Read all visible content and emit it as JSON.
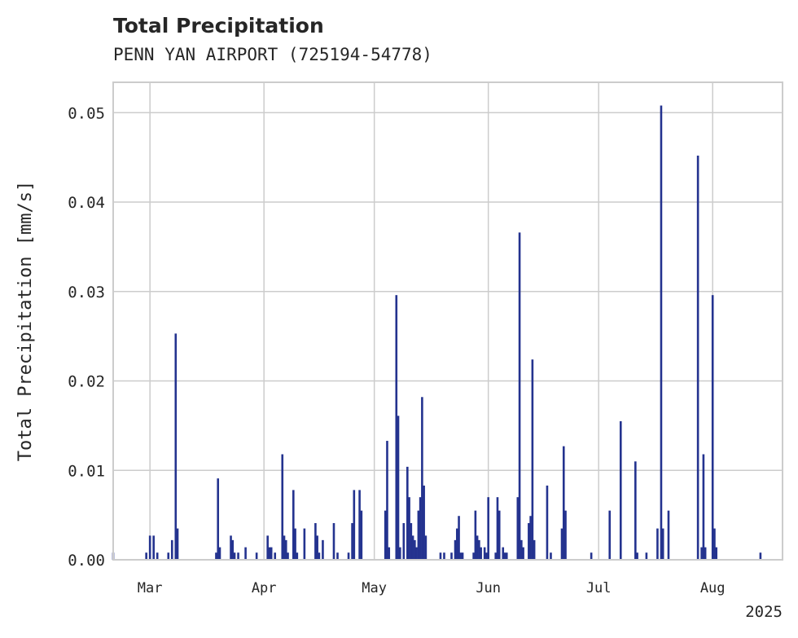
{
  "chart_data": {
    "type": "bar",
    "title": "Total Precipitation",
    "subtitle": "PENN YAN AIRPORT (725194-54778)",
    "xlabel": "",
    "ylabel": "Total Precipitation [mm/s]",
    "year_label": "2025",
    "xlim": [
      "2025-02-19",
      "2025-08-20"
    ],
    "ylim": [
      0,
      0.0534
    ],
    "grid": true,
    "y_ticks": [
      {
        "value": 0.0,
        "label": "0.00"
      },
      {
        "value": 0.01,
        "label": "0.01"
      },
      {
        "value": 0.02,
        "label": "0.02"
      },
      {
        "value": 0.03,
        "label": "0.03"
      },
      {
        "value": 0.04,
        "label": "0.04"
      },
      {
        "value": 0.05,
        "label": "0.05"
      }
    ],
    "x_ticks": [
      {
        "date": "2025-03-01",
        "label": "Mar"
      },
      {
        "date": "2025-04-01",
        "label": "Apr"
      },
      {
        "date": "2025-05-01",
        "label": "May"
      },
      {
        "date": "2025-06-01",
        "label": "Jun"
      },
      {
        "date": "2025-07-01",
        "label": "Jul"
      },
      {
        "date": "2025-08-01",
        "label": "Aug"
      }
    ],
    "color": "#24338f",
    "points": [
      [
        "2025-02-19",
        0.0008
      ],
      [
        "2025-02-28",
        0.0008
      ],
      [
        "2025-03-01",
        0.0027
      ],
      [
        "2025-03-02",
        0.0027
      ],
      [
        "2025-03-03",
        0.0008
      ],
      [
        "2025-03-06",
        0.0008
      ],
      [
        "2025-03-07",
        0.0022
      ],
      [
        "2025-03-08",
        0.0253
      ],
      [
        "2025-03-08T12:00",
        0.0035
      ],
      [
        "2025-03-19",
        0.0008
      ],
      [
        "2025-03-19T12:00",
        0.0091
      ],
      [
        "2025-03-20",
        0.0014
      ],
      [
        "2025-03-23",
        0.0027
      ],
      [
        "2025-03-23T12:00",
        0.0022
      ],
      [
        "2025-03-24",
        0.0008
      ],
      [
        "2025-03-25",
        0.0008
      ],
      [
        "2025-03-27",
        0.0014
      ],
      [
        "2025-03-30",
        0.0008
      ],
      [
        "2025-04-02",
        0.0027
      ],
      [
        "2025-04-02T12:00",
        0.0014
      ],
      [
        "2025-04-03",
        0.0014
      ],
      [
        "2025-04-04",
        0.0008
      ],
      [
        "2025-04-06",
        0.0118
      ],
      [
        "2025-04-06T12:00",
        0.0027
      ],
      [
        "2025-04-07",
        0.0022
      ],
      [
        "2025-04-07T12:00",
        0.0008
      ],
      [
        "2025-04-09",
        0.0078
      ],
      [
        "2025-04-09T12:00",
        0.0035
      ],
      [
        "2025-04-10",
        0.0008
      ],
      [
        "2025-04-12",
        0.0035
      ],
      [
        "2025-04-15",
        0.0041
      ],
      [
        "2025-04-15T12:00",
        0.0027
      ],
      [
        "2025-04-16",
        0.0008
      ],
      [
        "2025-04-17",
        0.0022
      ],
      [
        "2025-04-20",
        0.0041
      ],
      [
        "2025-04-21",
        0.0008
      ],
      [
        "2025-04-24",
        0.0008
      ],
      [
        "2025-04-25",
        0.0041
      ],
      [
        "2025-04-25T12:00",
        0.0078
      ],
      [
        "2025-04-27",
        0.0078
      ],
      [
        "2025-04-27T12:00",
        0.0055
      ],
      [
        "2025-05-04",
        0.0055
      ],
      [
        "2025-05-04T12:00",
        0.0133
      ],
      [
        "2025-05-05",
        0.0014
      ],
      [
        "2025-05-07",
        0.0296
      ],
      [
        "2025-05-07T12:00",
        0.0161
      ],
      [
        "2025-05-08",
        0.0014
      ],
      [
        "2025-05-09",
        0.0041
      ],
      [
        "2025-05-10",
        0.0104
      ],
      [
        "2025-05-10T12:00",
        0.007
      ],
      [
        "2025-05-11",
        0.0041
      ],
      [
        "2025-05-11T12:00",
        0.0027
      ],
      [
        "2025-05-12",
        0.0022
      ],
      [
        "2025-05-12T12:00",
        0.0014
      ],
      [
        "2025-05-13",
        0.0055
      ],
      [
        "2025-05-13T12:00",
        0.007
      ],
      [
        "2025-05-14",
        0.0182
      ],
      [
        "2025-05-14T12:00",
        0.0083
      ],
      [
        "2025-05-15",
        0.0027
      ],
      [
        "2025-05-19",
        0.0008
      ],
      [
        "2025-05-20",
        0.0008
      ],
      [
        "2025-05-22",
        0.0008
      ],
      [
        "2025-05-23",
        0.0022
      ],
      [
        "2025-05-23T12:00",
        0.0035
      ],
      [
        "2025-05-24",
        0.0049
      ],
      [
        "2025-05-24T12:00",
        0.0008
      ],
      [
        "2025-05-25",
        0.0008
      ],
      [
        "2025-05-28",
        0.0008
      ],
      [
        "2025-05-28T12:00",
        0.0055
      ],
      [
        "2025-05-29",
        0.0027
      ],
      [
        "2025-05-29T12:00",
        0.0022
      ],
      [
        "2025-05-30",
        0.0014
      ],
      [
        "2025-05-31",
        0.0014
      ],
      [
        "2025-05-31T12:00",
        0.0008
      ],
      [
        "2025-06-01",
        0.007
      ],
      [
        "2025-06-03",
        0.0008
      ],
      [
        "2025-06-03T12:00",
        0.007
      ],
      [
        "2025-06-04",
        0.0055
      ],
      [
        "2025-06-05",
        0.0014
      ],
      [
        "2025-06-05T12:00",
        0.0008
      ],
      [
        "2025-06-06",
        0.0008
      ],
      [
        "2025-06-09",
        0.007
      ],
      [
        "2025-06-09T12:00",
        0.0366
      ],
      [
        "2025-06-10",
        0.0022
      ],
      [
        "2025-06-10T12:00",
        0.0014
      ],
      [
        "2025-06-12",
        0.0041
      ],
      [
        "2025-06-12T12:00",
        0.0049
      ],
      [
        "2025-06-13",
        0.0224
      ],
      [
        "2025-06-13T12:00",
        0.0022
      ],
      [
        "2025-06-17",
        0.0083
      ],
      [
        "2025-06-18",
        0.0008
      ],
      [
        "2025-06-21",
        0.0035
      ],
      [
        "2025-06-21T12:00",
        0.0127
      ],
      [
        "2025-06-22",
        0.0055
      ],
      [
        "2025-06-29",
        0.0008
      ],
      [
        "2025-07-04",
        0.0055
      ],
      [
        "2025-07-07",
        0.0155
      ],
      [
        "2025-07-11",
        0.011
      ],
      [
        "2025-07-11T12:00",
        0.0008
      ],
      [
        "2025-07-14",
        0.0008
      ],
      [
        "2025-07-17",
        0.0035
      ],
      [
        "2025-07-18",
        0.0508
      ],
      [
        "2025-07-18T12:00",
        0.0035
      ],
      [
        "2025-07-20",
        0.0055
      ],
      [
        "2025-07-28",
        0.0452
      ],
      [
        "2025-07-29",
        0.0014
      ],
      [
        "2025-07-29T12:00",
        0.0118
      ],
      [
        "2025-07-30",
        0.0014
      ],
      [
        "2025-08-01",
        0.0296
      ],
      [
        "2025-08-01T12:00",
        0.0035
      ],
      [
        "2025-08-02",
        0.0014
      ],
      [
        "2025-08-14",
        0.0008
      ]
    ]
  }
}
